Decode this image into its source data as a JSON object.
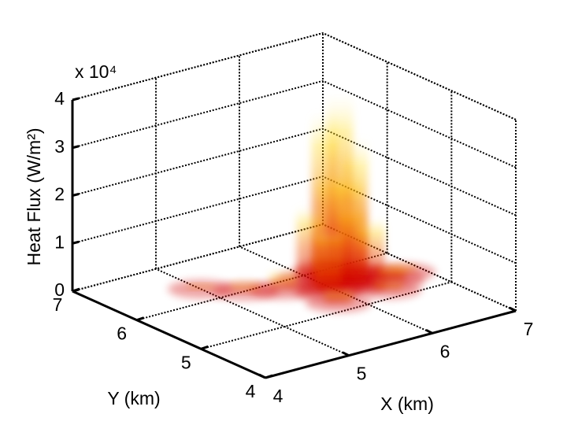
{
  "chart_data": {
    "type": "plume3d",
    "zlabel": "Heat Flux (W/m²)",
    "zscale_label": "x 10⁴",
    "xlabel": "X (km)",
    "ylabel": "Y (km)",
    "xlim": [
      4,
      7
    ],
    "xticks": [
      4,
      5,
      6,
      7
    ],
    "ylim": [
      4,
      7
    ],
    "yticks": [
      4,
      5,
      6,
      7
    ],
    "zlim": [
      0,
      4
    ],
    "zticks": [
      0,
      1,
      2,
      3,
      4
    ],
    "grid": true,
    "x": [
      6.2,
      6.1,
      6.3,
      6.0,
      6.4,
      6.2,
      6.0,
      6.5,
      5.9,
      6.3,
      5.6,
      5.3,
      5.0,
      6.6,
      6.8,
      5.8,
      6.4
    ],
    "y": [
      5.7,
      5.8,
      5.6,
      5.6,
      5.8,
      5.5,
      5.9,
      5.6,
      5.5,
      6.0,
      5.8,
      6.0,
      6.3,
      5.4,
      5.5,
      5.2,
      5.2
    ],
    "values": [
      3.9,
      3.5,
      3.0,
      2.6,
      2.2,
      1.8,
      1.5,
      1.2,
      0.9,
      0.8,
      0.4,
      0.2,
      0.1,
      0.3,
      0.15,
      0.3,
      0.2
    ]
  }
}
